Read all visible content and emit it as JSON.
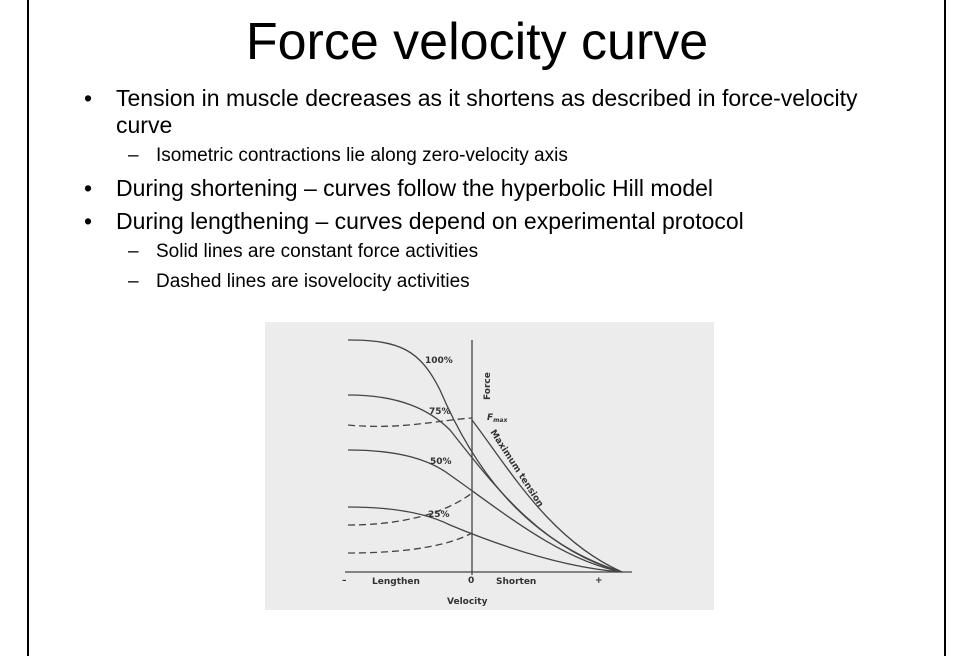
{
  "title": "Force velocity curve",
  "bullets": [
    {
      "level": 1,
      "text": "Tension in muscle decreases as it shortens as described in force-velocity curve"
    },
    {
      "level": 2,
      "text": "Isometric contractions lie along zero-velocity axis"
    },
    {
      "level": 1,
      "text": "During shortening – curves follow the hyperbolic Hill model"
    },
    {
      "level": 1,
      "text": "During lengthening – curves depend on experimental protocol"
    },
    {
      "level": 2,
      "text": "Solid lines are constant force activities"
    },
    {
      "level": 2,
      "text": "Dashed lines are isovelocity activities"
    }
  ],
  "figure": {
    "curve_labels": [
      "100%",
      "75%",
      "50%",
      "25%"
    ],
    "y_axis_label": "Force",
    "fmax_label": "F",
    "fmax_subscript": "max",
    "max_tension_label": "Maximum tension",
    "x_minus": "–",
    "x_left_label": "Lengthen",
    "x_zero": "0",
    "x_right_label": "Shorten",
    "x_plus": "+",
    "x_axis_label": "Velocity"
  }
}
